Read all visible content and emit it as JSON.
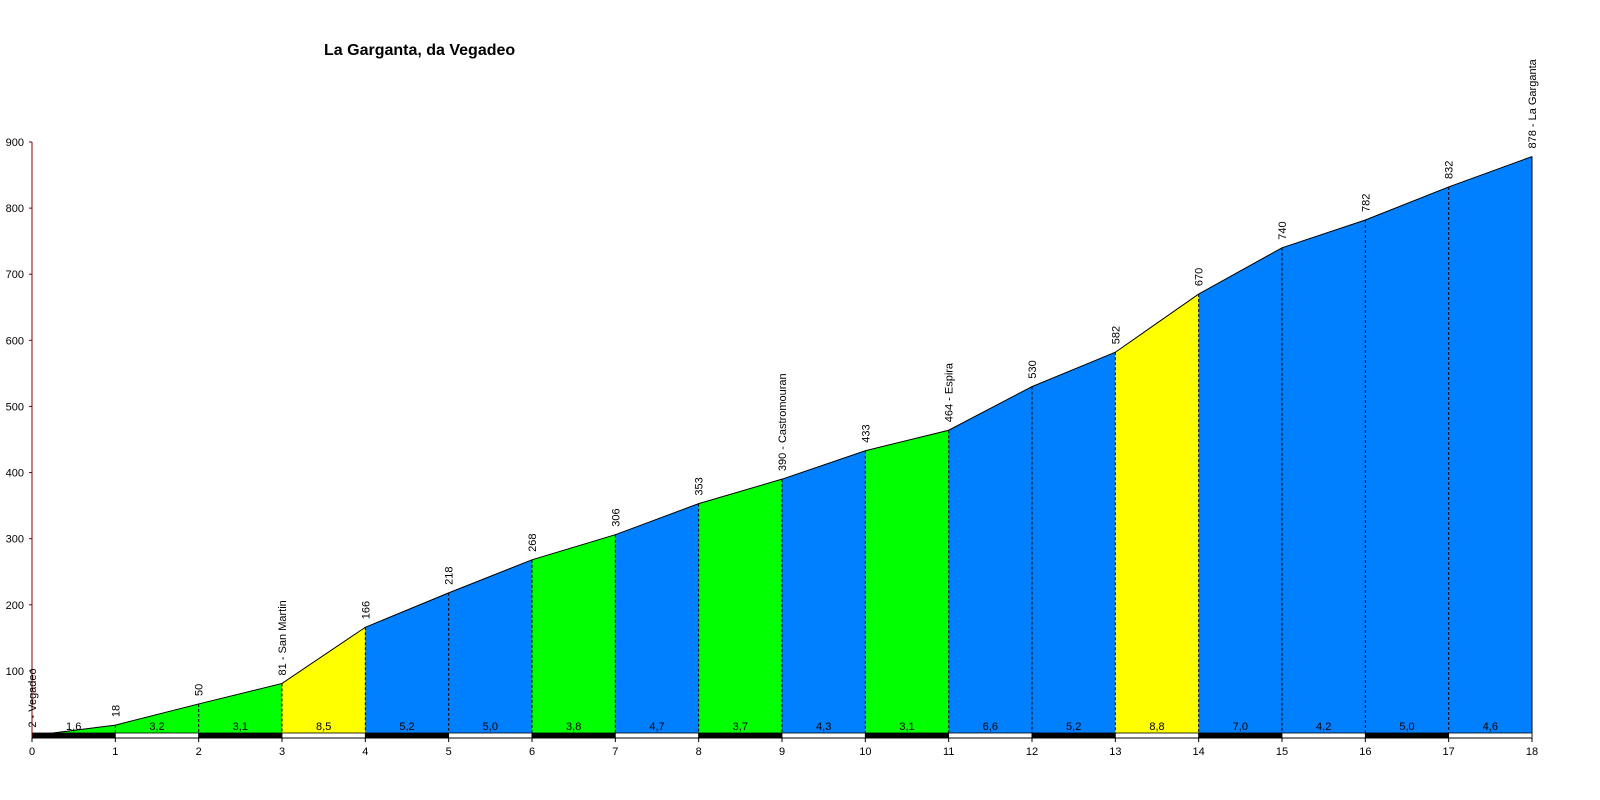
{
  "chart_data": {
    "type": "area",
    "title": "La Garganta, da Vegadeo",
    "xlabel": "",
    "ylabel": "",
    "xlim": [
      0,
      18
    ],
    "ylim": [
      0,
      900
    ],
    "x_ticks": [
      "0",
      "1",
      "2",
      "3",
      "4",
      "5",
      "6",
      "7",
      "8",
      "9",
      "10",
      "11",
      "12",
      "13",
      "14",
      "15",
      "16",
      "17",
      "18"
    ],
    "y_ticks": [
      "100",
      "200",
      "300",
      "400",
      "500",
      "600",
      "700",
      "800",
      "900"
    ],
    "points": [
      {
        "km": 0,
        "alt": 2,
        "label": "2 - Vegadeo"
      },
      {
        "km": 1,
        "alt": 18,
        "label": "18"
      },
      {
        "km": 2,
        "alt": 50,
        "label": "50"
      },
      {
        "km": 3,
        "alt": 81,
        "label": "81 - San Martin"
      },
      {
        "km": 4,
        "alt": 166,
        "label": "166"
      },
      {
        "km": 5,
        "alt": 218,
        "label": "218"
      },
      {
        "km": 6,
        "alt": 268,
        "label": "268"
      },
      {
        "km": 7,
        "alt": 306,
        "label": "306"
      },
      {
        "km": 8,
        "alt": 353,
        "label": "353"
      },
      {
        "km": 9,
        "alt": 390,
        "label": "390 - Castromouran"
      },
      {
        "km": 10,
        "alt": 433,
        "label": "433"
      },
      {
        "km": 11,
        "alt": 464,
        "label": "464 - Espira"
      },
      {
        "km": 12,
        "alt": 530,
        "label": "530"
      },
      {
        "km": 13,
        "alt": 582,
        "label": "582"
      },
      {
        "km": 14,
        "alt": 670,
        "label": "670"
      },
      {
        "km": 15,
        "alt": 740,
        "label": "740"
      },
      {
        "km": 16,
        "alt": 782,
        "label": "782"
      },
      {
        "km": 17,
        "alt": 832,
        "label": "832"
      },
      {
        "km": 18,
        "alt": 878,
        "label": "878 - La Garganta"
      }
    ],
    "segments": [
      {
        "gradient": "1,6",
        "color": "#00ff00"
      },
      {
        "gradient": "3,2",
        "color": "#00ff00"
      },
      {
        "gradient": "3,1",
        "color": "#00ff00"
      },
      {
        "gradient": "8,5",
        "color": "#ffff00"
      },
      {
        "gradient": "5,2",
        "color": "#0080ff"
      },
      {
        "gradient": "5,0",
        "color": "#0080ff"
      },
      {
        "gradient": "3,8",
        "color": "#00ff00"
      },
      {
        "gradient": "4,7",
        "color": "#0080ff"
      },
      {
        "gradient": "3,7",
        "color": "#00ff00"
      },
      {
        "gradient": "4,3",
        "color": "#0080ff"
      },
      {
        "gradient": "3,1",
        "color": "#00ff00"
      },
      {
        "gradient": "6,6",
        "color": "#0080ff"
      },
      {
        "gradient": "5,2",
        "color": "#0080ff"
      },
      {
        "gradient": "8,8",
        "color": "#ffff00"
      },
      {
        "gradient": "7,0",
        "color": "#0080ff"
      },
      {
        "gradient": "4,2",
        "color": "#0080ff"
      },
      {
        "gradient": "5,0",
        "color": "#0080ff"
      },
      {
        "gradient": "4,6",
        "color": "#0080ff"
      }
    ],
    "grid": false,
    "legend": "none"
  }
}
